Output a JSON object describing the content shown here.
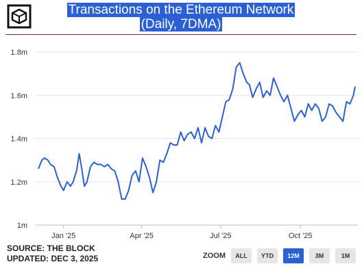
{
  "chart_data": {
    "type": "line",
    "title": "Transactions on the Ethereum Network",
    "subtitle": "(Daily, 7DMA)",
    "x_ticks": [
      "Jan '25",
      "Apr '25",
      "Jul '25",
      "Oct '25"
    ],
    "y_ticks": [
      "1m",
      "1.2m",
      "1.4m",
      "1.6m",
      "1.8m"
    ],
    "ylim": [
      1.0,
      1.8
    ],
    "grid": true,
    "series": [
      {
        "color": "#2a5fd6",
        "x": [
          "2024-12-03",
          "2024-12-07",
          "2024-12-10",
          "2024-12-14",
          "2024-12-17",
          "2024-12-21",
          "2024-12-25",
          "2024-12-29",
          "2025-01-01",
          "2025-01-05",
          "2025-01-09",
          "2025-01-12",
          "2025-01-16",
          "2025-01-19",
          "2025-01-22",
          "2025-01-25",
          "2025-01-28",
          "2025-02-01",
          "2025-02-05",
          "2025-02-09",
          "2025-02-13",
          "2025-02-17",
          "2025-02-21",
          "2025-02-25",
          "2025-03-01",
          "2025-03-05",
          "2025-03-09",
          "2025-03-13",
          "2025-03-17",
          "2025-03-21",
          "2025-03-25",
          "2025-03-29",
          "2025-04-02",
          "2025-04-06",
          "2025-04-10",
          "2025-04-14",
          "2025-04-18",
          "2025-04-22",
          "2025-04-26",
          "2025-04-30",
          "2025-05-04",
          "2025-05-08",
          "2025-05-12",
          "2025-05-16",
          "2025-05-20",
          "2025-05-24",
          "2025-05-28",
          "2025-06-01",
          "2025-06-05",
          "2025-06-09",
          "2025-06-13",
          "2025-06-17",
          "2025-06-21",
          "2025-06-25",
          "2025-06-29",
          "2025-07-03",
          "2025-07-07",
          "2025-07-11",
          "2025-07-15",
          "2025-07-19",
          "2025-07-23",
          "2025-07-27",
          "2025-07-31",
          "2025-08-03",
          "2025-08-07",
          "2025-08-11",
          "2025-08-15",
          "2025-08-19",
          "2025-08-23",
          "2025-08-27",
          "2025-08-31",
          "2025-09-04",
          "2025-09-08",
          "2025-09-12",
          "2025-09-16",
          "2025-09-20",
          "2025-09-24",
          "2025-09-28",
          "2025-10-02",
          "2025-10-06",
          "2025-10-10",
          "2025-10-14",
          "2025-10-18",
          "2025-10-22",
          "2025-10-26",
          "2025-10-30",
          "2025-11-03",
          "2025-11-07",
          "2025-11-11",
          "2025-11-15",
          "2025-11-19",
          "2025-11-23",
          "2025-11-27",
          "2025-12-01",
          "2025-12-03"
        ],
        "values": [
          1.26,
          1.3,
          1.31,
          1.3,
          1.28,
          1.27,
          1.22,
          1.18,
          1.16,
          1.2,
          1.18,
          1.2,
          1.25,
          1.33,
          1.26,
          1.18,
          1.2,
          1.27,
          1.29,
          1.28,
          1.28,
          1.27,
          1.28,
          1.26,
          1.25,
          1.2,
          1.12,
          1.12,
          1.16,
          1.23,
          1.25,
          1.2,
          1.31,
          1.27,
          1.22,
          1.15,
          1.2,
          1.3,
          1.29,
          1.33,
          1.38,
          1.37,
          1.37,
          1.43,
          1.39,
          1.42,
          1.43,
          1.4,
          1.45,
          1.38,
          1.45,
          1.41,
          1.4,
          1.46,
          1.43,
          1.5,
          1.57,
          1.58,
          1.63,
          1.73,
          1.75,
          1.7,
          1.66,
          1.65,
          1.59,
          1.63,
          1.66,
          1.59,
          1.62,
          1.6,
          1.68,
          1.64,
          1.6,
          1.57,
          1.6,
          1.54,
          1.48,
          1.51,
          1.53,
          1.5,
          1.56,
          1.53,
          1.56,
          1.54,
          1.48,
          1.5,
          1.56,
          1.55,
          1.52,
          1.5,
          1.48,
          1.57,
          1.56,
          1.6,
          1.64
        ]
      }
    ]
  },
  "footer": {
    "source": "SOURCE: THE BLOCK",
    "updated": "UPDATED: DEC 3, 2025"
  },
  "zoom": {
    "label": "ZOOM",
    "buttons": [
      "ALL",
      "YTD",
      "12M",
      "3M",
      "1M"
    ],
    "active": "12M"
  },
  "icons": {
    "logo": "the-block-cube-logo"
  }
}
